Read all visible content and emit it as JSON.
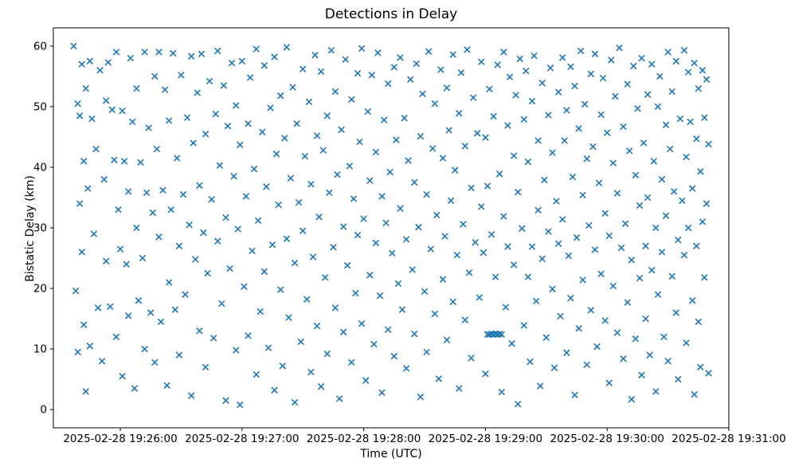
{
  "figure": {
    "title": "Detections in Delay",
    "xlabel": "Time (UTC)",
    "ylabel": "Bistatic Delay (km)"
  },
  "chart_data": {
    "type": "scatter",
    "title": "Detections in Delay",
    "xlabel": "Time (UTC)",
    "ylabel": "Bistatic Delay (km)",
    "marker": "x",
    "marker_color": "#1f77b4",
    "grid": false,
    "legend": "none",
    "x_axis": {
      "unit": "seconds, 0 = 2025-02-28 19:25:27 UTC",
      "range": [
        0,
        333
      ],
      "ticks": [
        {
          "s": 33,
          "label": "2025-02-28 19:26:00"
        },
        {
          "s": 93,
          "label": "2025-02-28 19:27:00"
        },
        {
          "s": 153,
          "label": "2025-02-28 19:28:00"
        },
        {
          "s": 213,
          "label": "2025-02-28 19:29:00"
        },
        {
          "s": 273,
          "label": "2025-02-28 19:30:00"
        },
        {
          "s": 333,
          "label": "2025-02-28 19:31:00"
        }
      ]
    },
    "y_axis": {
      "unit": "km",
      "range": [
        -3,
        63
      ],
      "ticks": [
        0,
        10,
        20,
        30,
        40,
        50,
        60
      ]
    },
    "points": [
      [
        10,
        60
      ],
      [
        11,
        19.6
      ],
      [
        12,
        50.5
      ],
      [
        12,
        9.5
      ],
      [
        13,
        48.5
      ],
      [
        13,
        34
      ],
      [
        14,
        57
      ],
      [
        14,
        26
      ],
      [
        15,
        41
      ],
      [
        15,
        14
      ],
      [
        16,
        53
      ],
      [
        16,
        3
      ],
      [
        17,
        36.5
      ],
      [
        18,
        57.5
      ],
      [
        18,
        10.5
      ],
      [
        19,
        48
      ],
      [
        20,
        29
      ],
      [
        21,
        43
      ],
      [
        22,
        16.8
      ],
      [
        23,
        56
      ],
      [
        24,
        8
      ],
      [
        25,
        38
      ],
      [
        26,
        51
      ],
      [
        26,
        24.5
      ],
      [
        27,
        57.3
      ],
      [
        28,
        17
      ],
      [
        29,
        49.5
      ],
      [
        30,
        41.2
      ],
      [
        31,
        59
      ],
      [
        31,
        12
      ],
      [
        32,
        33
      ],
      [
        33,
        26.5
      ],
      [
        34,
        49.3
      ],
      [
        34,
        5.5
      ],
      [
        35,
        41
      ],
      [
        36,
        24
      ],
      [
        37,
        36
      ],
      [
        37,
        15.5
      ],
      [
        38,
        58
      ],
      [
        39,
        47.5
      ],
      [
        40,
        3.5
      ],
      [
        41,
        30
      ],
      [
        41,
        53
      ],
      [
        42,
        18
      ],
      [
        43,
        40.8
      ],
      [
        44,
        25
      ],
      [
        45,
        59
      ],
      [
        45,
        10
      ],
      [
        46,
        35.8
      ],
      [
        47,
        46.5
      ],
      [
        48,
        16
      ],
      [
        49,
        32.5
      ],
      [
        50,
        55
      ],
      [
        50,
        7.8
      ],
      [
        51,
        43
      ],
      [
        52,
        28.5
      ],
      [
        52,
        59
      ],
      [
        53,
        14.5
      ],
      [
        54,
        36.2
      ],
      [
        55,
        52.8
      ],
      [
        56,
        4
      ],
      [
        57,
        21
      ],
      [
        57,
        47.7
      ],
      [
        58,
        33
      ],
      [
        59,
        58.8
      ],
      [
        60,
        16.5
      ],
      [
        61,
        41.5
      ],
      [
        62,
        27
      ],
      [
        62,
        9
      ],
      [
        63,
        55.2
      ],
      [
        64,
        35.5
      ],
      [
        65,
        19
      ],
      [
        66,
        48.2
      ],
      [
        67,
        30.5
      ],
      [
        68,
        58.3
      ],
      [
        68,
        2.3
      ],
      [
        69,
        44
      ],
      [
        70,
        24.8
      ],
      [
        71,
        52.3
      ],
      [
        72,
        13
      ],
      [
        72,
        37
      ],
      [
        73,
        58.7
      ],
      [
        74,
        29.2
      ],
      [
        75,
        45.5
      ],
      [
        75,
        7
      ],
      [
        76,
        22.5
      ],
      [
        77,
        54.2
      ],
      [
        78,
        34.7
      ],
      [
        79,
        11.8
      ],
      [
        80,
        48.8
      ],
      [
        81,
        59.2
      ],
      [
        81,
        27.8
      ],
      [
        82,
        40.3
      ],
      [
        83,
        17.5
      ],
      [
        84,
        53.5
      ],
      [
        85,
        31.7
      ],
      [
        85,
        1.5
      ],
      [
        86,
        46.8
      ],
      [
        87,
        23.3
      ],
      [
        88,
        57.2
      ],
      [
        89,
        38.5
      ],
      [
        90,
        9.8
      ],
      [
        90,
        50.2
      ],
      [
        91,
        29.8
      ],
      [
        92,
        43.7
      ],
      [
        92,
        0.8
      ],
      [
        93,
        57.5
      ],
      [
        94,
        20.3
      ],
      [
        95,
        35.2
      ],
      [
        96,
        47.2
      ],
      [
        96,
        12.2
      ],
      [
        97,
        54.8
      ],
      [
        98,
        26.2
      ],
      [
        99,
        39.7
      ],
      [
        100,
        5.8
      ],
      [
        100,
        59.5
      ],
      [
        101,
        31.2
      ],
      [
        102,
        16.2
      ],
      [
        103,
        45.8
      ],
      [
        104,
        56.8
      ],
      [
        104,
        22.8
      ],
      [
        105,
        36.8
      ],
      [
        106,
        10.2
      ],
      [
        107,
        49.8
      ],
      [
        108,
        27.2
      ],
      [
        109,
        58.2
      ],
      [
        109,
        3.2
      ],
      [
        110,
        42.2
      ],
      [
        111,
        33.8
      ],
      [
        112,
        19.8
      ],
      [
        112,
        51.8
      ],
      [
        113,
        7.2
      ],
      [
        114,
        44.8
      ],
      [
        115,
        28.2
      ],
      [
        115,
        59.8
      ],
      [
        116,
        15.2
      ],
      [
        117,
        38.2
      ],
      [
        118,
        53.2
      ],
      [
        119,
        24.2
      ],
      [
        119,
        1.2
      ],
      [
        120,
        47.2
      ],
      [
        121,
        34.2
      ],
      [
        122,
        11.2
      ],
      [
        123,
        56.2
      ],
      [
        123,
        29.5
      ],
      [
        124,
        41.8
      ],
      [
        125,
        18.2
      ],
      [
        126,
        50.8
      ],
      [
        127,
        6.2
      ],
      [
        127,
        37.2
      ],
      [
        128,
        25.2
      ],
      [
        129,
        58.5
      ],
      [
        130,
        13.8
      ],
      [
        130,
        45.2
      ],
      [
        131,
        31.8
      ],
      [
        132,
        55.8
      ],
      [
        132,
        3.8
      ],
      [
        133,
        42.8
      ],
      [
        134,
        21.8
      ],
      [
        135,
        48.5
      ],
      [
        135,
        9.2
      ],
      [
        136,
        35.8
      ],
      [
        137,
        59.3
      ],
      [
        138,
        26.8
      ],
      [
        139,
        16.8
      ],
      [
        139,
        52.5
      ],
      [
        140,
        38.8
      ],
      [
        141,
        1.8
      ],
      [
        142,
        46.2
      ],
      [
        143,
        30.2
      ],
      [
        143,
        12.8
      ],
      [
        144,
        57.8
      ],
      [
        145,
        23.8
      ],
      [
        146,
        40.2
      ],
      [
        147,
        7.8
      ],
      [
        147,
        51.2
      ],
      [
        148,
        34.8
      ],
      [
        149,
        19.2
      ],
      [
        150,
        55.5
      ],
      [
        150,
        28.8
      ],
      [
        151,
        44.2
      ],
      [
        152,
        14.2
      ],
      [
        152,
        59.6
      ],
      [
        153,
        31.5
      ],
      [
        154,
        4.8
      ],
      [
        155,
        49.2
      ],
      [
        156,
        22.2
      ],
      [
        156,
        37.8
      ],
      [
        157,
        55.2
      ],
      [
        158,
        10.8
      ],
      [
        159,
        42.5
      ],
      [
        159,
        27.5
      ],
      [
        160,
        58.9
      ],
      [
        161,
        18.8
      ],
      [
        162,
        35.2
      ],
      [
        162,
        2.8
      ],
      [
        163,
        47.8
      ],
      [
        164,
        30.8
      ],
      [
        165,
        53.8
      ],
      [
        165,
        13.2
      ],
      [
        166,
        39.2
      ],
      [
        167,
        25.8
      ],
      [
        168,
        56.5
      ],
      [
        168,
        8.8
      ],
      [
        169,
        44.5
      ],
      [
        170,
        20.8
      ],
      [
        171,
        33.2
      ],
      [
        171,
        58.1
      ],
      [
        172,
        16.5
      ],
      [
        173,
        48.1
      ],
      [
        174,
        28.1
      ],
      [
        174,
        6.8
      ],
      [
        175,
        41.1
      ],
      [
        176,
        54.5
      ],
      [
        177,
        23.1
      ],
      [
        178,
        37.5
      ],
      [
        178,
        12.5
      ],
      [
        179,
        57.1
      ],
      [
        180,
        30.1
      ],
      [
        181,
        45.1
      ],
      [
        181,
        2.1
      ],
      [
        182,
        52.1
      ],
      [
        183,
        19.5
      ],
      [
        184,
        35.5
      ],
      [
        184,
        9.5
      ],
      [
        185,
        59.1
      ],
      [
        186,
        26.5
      ],
      [
        187,
        43.1
      ],
      [
        188,
        15.8
      ],
      [
        188,
        50.5
      ],
      [
        189,
        32.1
      ],
      [
        190,
        5.1
      ],
      [
        191,
        56.1
      ],
      [
        192,
        21.5
      ],
      [
        192,
        41.5
      ],
      [
        193,
        28.6
      ],
      [
        194,
        53.1
      ],
      [
        194,
        11.5
      ],
      [
        195,
        46.1
      ],
      [
        196,
        34.5
      ],
      [
        197,
        58.6
      ],
      [
        197,
        17.8
      ],
      [
        198,
        39.5
      ],
      [
        199,
        25.5
      ],
      [
        200,
        48.9
      ],
      [
        200,
        3.5
      ],
      [
        201,
        55.6
      ],
      [
        202,
        30.6
      ],
      [
        203,
        14.8
      ],
      [
        203,
        43.5
      ],
      [
        204,
        59.4
      ],
      [
        205,
        22.6
      ],
      [
        206,
        36.6
      ],
      [
        206,
        8.5
      ],
      [
        207,
        51.5
      ],
      [
        208,
        27.6
      ],
      [
        209,
        45.6
      ],
      [
        210,
        18.5
      ],
      [
        211,
        33.5
      ],
      [
        211,
        57.4
      ],
      [
        212,
        25.9
      ],
      [
        213,
        44.9
      ],
      [
        213,
        5.9
      ],
      [
        214,
        12.4
      ],
      [
        214,
        36.9
      ],
      [
        215,
        12.4
      ],
      [
        215,
        52.9
      ],
      [
        216,
        12.5
      ],
      [
        216,
        28.9
      ],
      [
        217,
        12.4
      ],
      [
        217,
        48.4
      ],
      [
        218,
        12.5
      ],
      [
        218,
        21.9
      ],
      [
        219,
        12.4
      ],
      [
        219,
        56.9
      ],
      [
        220,
        12.5
      ],
      [
        220,
        38.9
      ],
      [
        221,
        12.4
      ],
      [
        221,
        2.9
      ],
      [
        222,
        31.9
      ],
      [
        222,
        59.0
      ],
      [
        223,
        16.9
      ],
      [
        224,
        46.9
      ],
      [
        224,
        26.9
      ],
      [
        225,
        54.9
      ],
      [
        226,
        10.9
      ],
      [
        227,
        41.9
      ],
      [
        227,
        23.9
      ],
      [
        228,
        51.9
      ],
      [
        229,
        35.9
      ],
      [
        229,
        0.9
      ],
      [
        230,
        57.9
      ],
      [
        231,
        29.9
      ],
      [
        232,
        47.9
      ],
      [
        232,
        13.9
      ],
      [
        233,
        55.9
      ],
      [
        234,
        21.9
      ],
      [
        234,
        40.9
      ],
      [
        235,
        7.9
      ],
      [
        236,
        50.9
      ],
      [
        236,
        26.9
      ],
      [
        237,
        58.4
      ],
      [
        238,
        17.9
      ],
      [
        239,
        44.4
      ],
      [
        239,
        32.9
      ],
      [
        240,
        3.9
      ],
      [
        241,
        53.9
      ],
      [
        241,
        24.9
      ],
      [
        242,
        37.9
      ],
      [
        243,
        11.9
      ],
      [
        244,
        48.6
      ],
      [
        244,
        29.4
      ],
      [
        245,
        56.4
      ],
      [
        246,
        19.9
      ],
      [
        246,
        42.4
      ],
      [
        247,
        6.9
      ],
      [
        248,
        34.4
      ],
      [
        249,
        52.4
      ],
      [
        249,
        27.4
      ],
      [
        250,
        15.4
      ],
      [
        251,
        58.1
      ],
      [
        251,
        31.4
      ],
      [
        252,
        44.4
      ],
      [
        253,
        9.4
      ],
      [
        253,
        49.4
      ],
      [
        254,
        25.4
      ],
      [
        255,
        56.6
      ],
      [
        255,
        18.4
      ],
      [
        256,
        38.4
      ],
      [
        257,
        2.4
      ],
      [
        257,
        53.4
      ],
      [
        258,
        28.4
      ],
      [
        259,
        46.4
      ],
      [
        259,
        13.4
      ],
      [
        260,
        59.2
      ],
      [
        261,
        35.4
      ],
      [
        261,
        21.4
      ],
      [
        262,
        50.4
      ],
      [
        263,
        7.4
      ],
      [
        263,
        41.4
      ],
      [
        264,
        30.4
      ],
      [
        265,
        55.4
      ],
      [
        265,
        16.4
      ],
      [
        266,
        43.4
      ],
      [
        267,
        26.4
      ],
      [
        267,
        58.7
      ],
      [
        268,
        10.4
      ],
      [
        269,
        37.4
      ],
      [
        270,
        48.7
      ],
      [
        270,
        22.4
      ],
      [
        271,
        54.7
      ],
      [
        272,
        32.4
      ],
      [
        272,
        14.7
      ],
      [
        273,
        45.7
      ],
      [
        274,
        28.7
      ],
      [
        274,
        4.4
      ],
      [
        275,
        57.7
      ],
      [
        276,
        20.4
      ],
      [
        276,
        40.7
      ],
      [
        277,
        51.7
      ],
      [
        278,
        12.7
      ],
      [
        278,
        35.7
      ],
      [
        279,
        59.7
      ],
      [
        280,
        26.7
      ],
      [
        281,
        46.7
      ],
      [
        281,
        8.4
      ],
      [
        282,
        30.7
      ],
      [
        283,
        53.7
      ],
      [
        283,
        17.7
      ],
      [
        284,
        42.7
      ],
      [
        285,
        24.7
      ],
      [
        285,
        1.7
      ],
      [
        286,
        56.7
      ],
      [
        287,
        38.7
      ],
      [
        287,
        11.7
      ],
      [
        288,
        49.7
      ],
      [
        289,
        33.7
      ],
      [
        289,
        21.7
      ],
      [
        290,
        58.0
      ],
      [
        290,
        5.7
      ],
      [
        291,
        44.0
      ],
      [
        292,
        27.0
      ],
      [
        292,
        15.0
      ],
      [
        293,
        52.0
      ],
      [
        293,
        35.0
      ],
      [
        294,
        9.0
      ],
      [
        295,
        57.0
      ],
      [
        295,
        23.0
      ],
      [
        296,
        41.0
      ],
      [
        297,
        30.0
      ],
      [
        297,
        3.0
      ],
      [
        298,
        50.0
      ],
      [
        298,
        19.0
      ],
      [
        299,
        55.0
      ],
      [
        300,
        26.0
      ],
      [
        300,
        38.0
      ],
      [
        301,
        12.0
      ],
      [
        302,
        47.0
      ],
      [
        302,
        32.0
      ],
      [
        303,
        59.0
      ],
      [
        303,
        8.0
      ],
      [
        304,
        43.0
      ],
      [
        305,
        22.0
      ],
      [
        305,
        52.5
      ],
      [
        306,
        36.0
      ],
      [
        307,
        16.0
      ],
      [
        307,
        57.5
      ],
      [
        308,
        28.0
      ],
      [
        308,
        5.0
      ],
      [
        309,
        48.0
      ],
      [
        310,
        34.5
      ],
      [
        311,
        59.3
      ],
      [
        311,
        25.5
      ],
      [
        312,
        41.7
      ],
      [
        312,
        11.0
      ],
      [
        313,
        55.7
      ],
      [
        313,
        30.0
      ],
      [
        314,
        47.5
      ],
      [
        315,
        18.0
      ],
      [
        315,
        36.5
      ],
      [
        316,
        57.2
      ],
      [
        316,
        2.5
      ],
      [
        317,
        44.7
      ],
      [
        317,
        27.0
      ],
      [
        318,
        53.0
      ],
      [
        318,
        14.5
      ],
      [
        319,
        39.3
      ],
      [
        319,
        7.0
      ],
      [
        320,
        56.0
      ],
      [
        320,
        31.0
      ],
      [
        321,
        48.2
      ],
      [
        321,
        21.8
      ],
      [
        322,
        34.0
      ],
      [
        322,
        54.5
      ],
      [
        323,
        6.0
      ],
      [
        323,
        43.8
      ]
    ]
  }
}
